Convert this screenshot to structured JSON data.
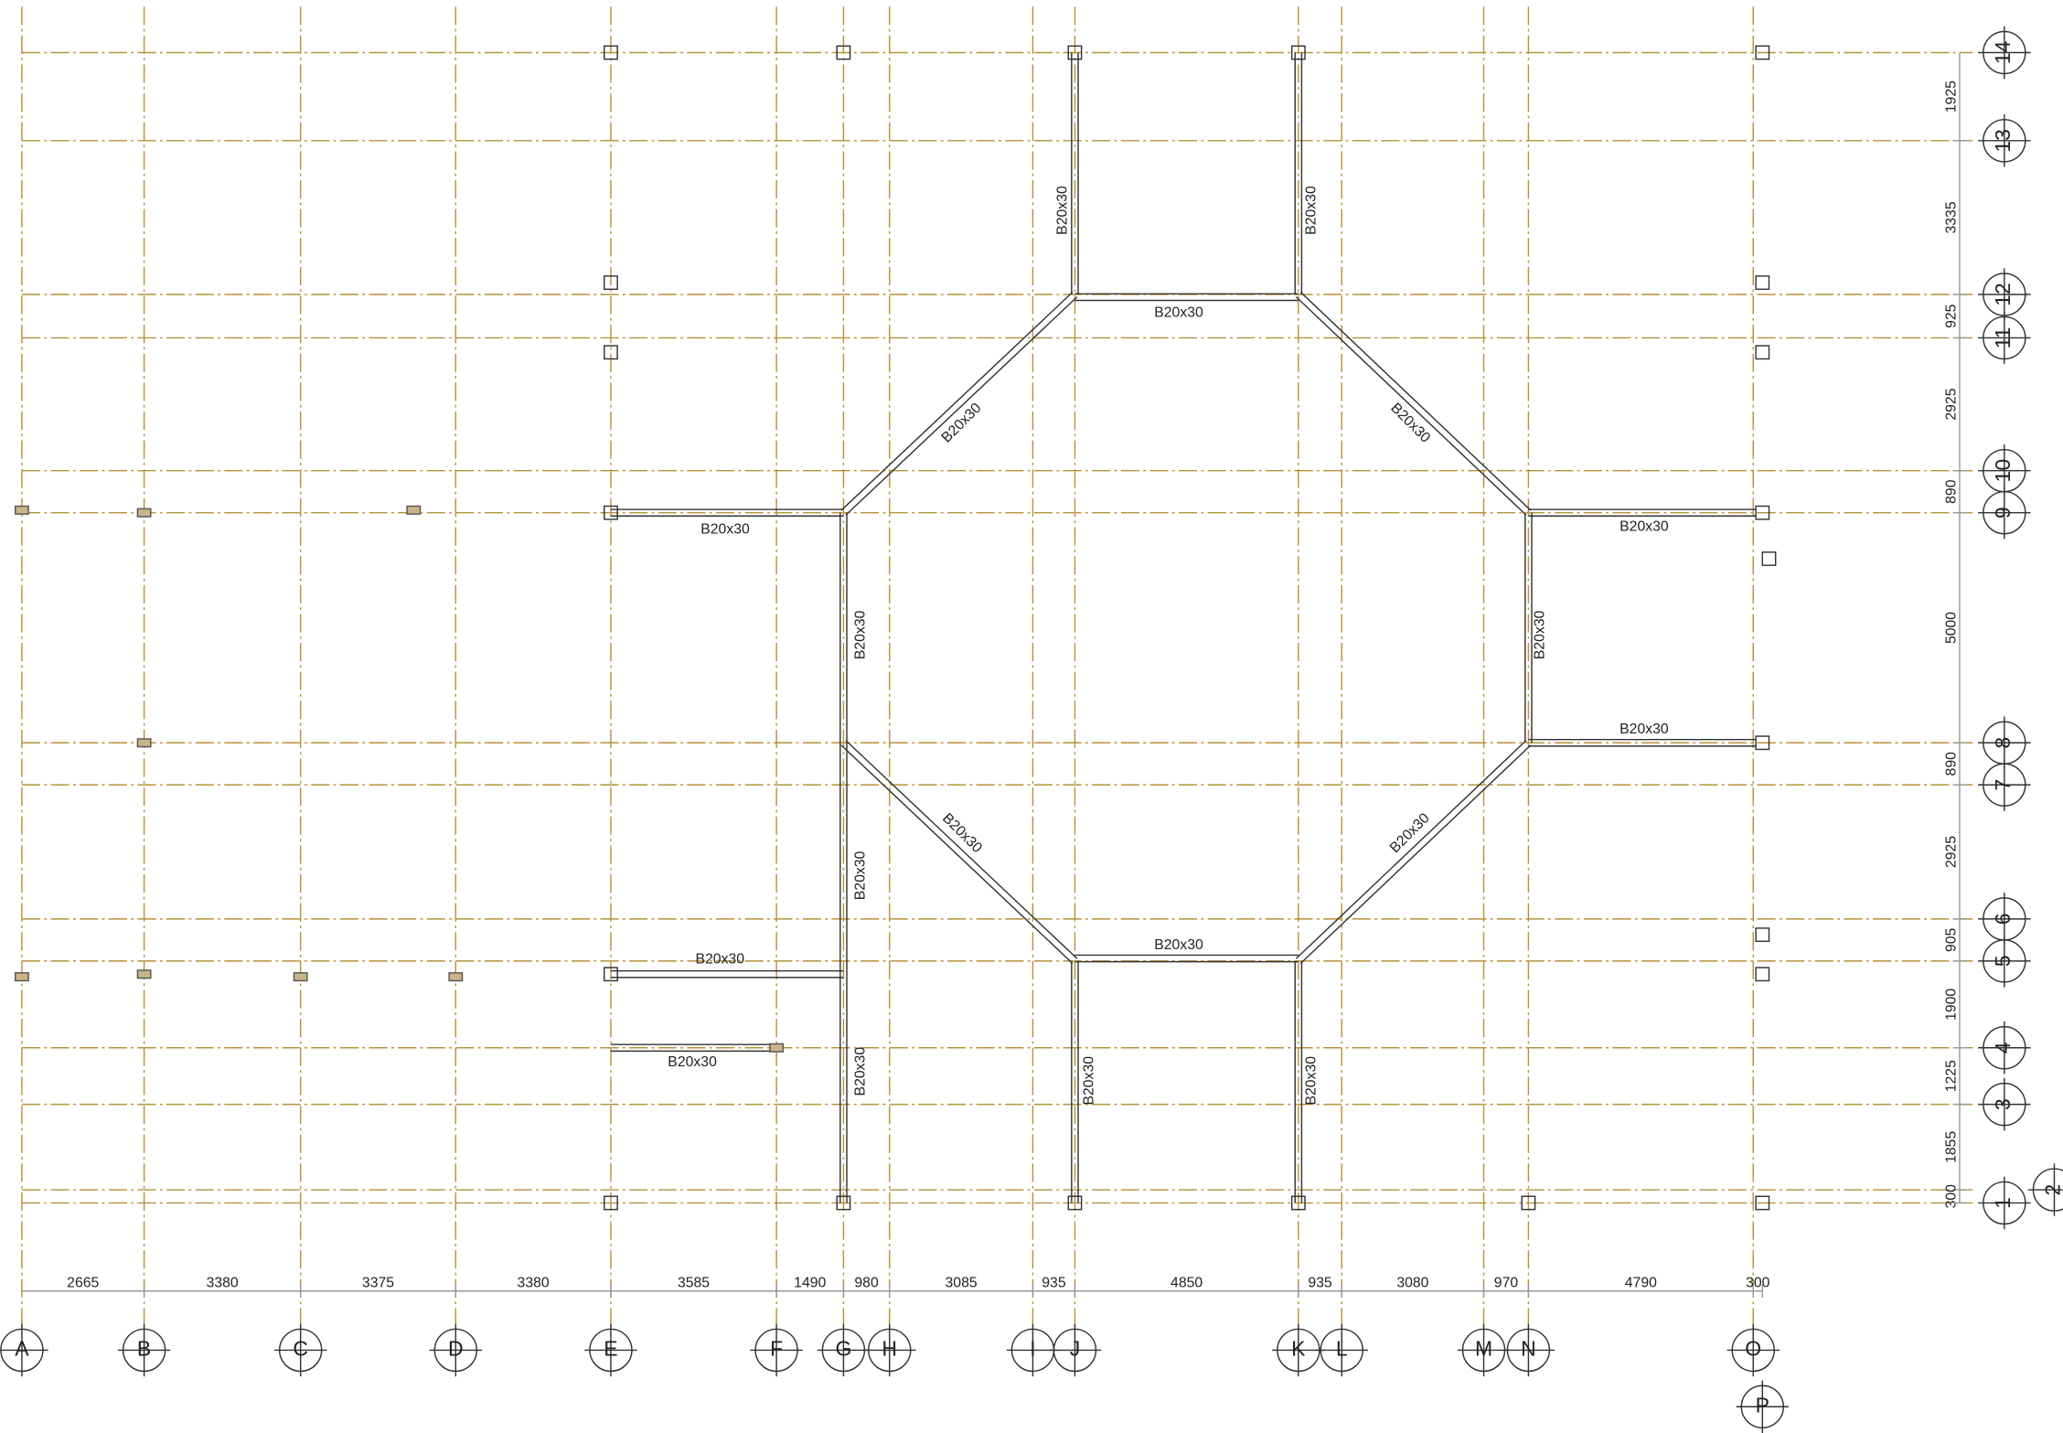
{
  "columns": [
    "A",
    "B",
    "C",
    "D",
    "E",
    "F",
    "G",
    "H",
    "I",
    "J",
    "K",
    "L",
    "M",
    "N",
    "O",
    "P"
  ],
  "rows": [
    "14",
    "13",
    "12",
    "11",
    "10",
    "9",
    "8",
    "7",
    "6",
    "5",
    "4",
    "3",
    "2",
    "1"
  ],
  "bottom_dims": [
    2665,
    3380,
    3375,
    3380,
    3585,
    1490,
    980,
    3085,
    935,
    4850,
    935,
    3080,
    970,
    4790,
    300
  ],
  "right_dims": [
    1925,
    3335,
    925,
    2925,
    890,
    5000,
    890,
    2925,
    905,
    1900,
    1225,
    1855,
    300
  ],
  "beams": [
    "B20x30",
    "B20x30",
    "B20x30",
    "B20x30",
    "B20x30",
    "B20x30",
    "B20x30",
    "B20x30",
    "B20x30",
    "B20x30",
    "B20x30",
    "B20x30",
    "B20x30",
    "B20x30",
    "B20x30",
    "B20x30",
    "B20x30",
    "B20x30",
    "B20x30"
  ]
}
